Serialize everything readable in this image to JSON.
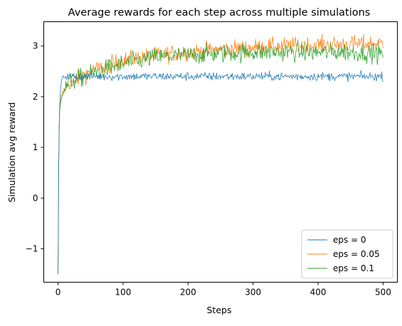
{
  "chart_data": {
    "type": "line",
    "title": "Average rewards for each step across multiple simulations",
    "xlabel": "Steps",
    "ylabel": "Simulation avg reward",
    "xlim": [
      -22,
      522
    ],
    "ylim": [
      -1.66,
      3.48
    ],
    "xticks": [
      0,
      100,
      200,
      300,
      400,
      500
    ],
    "yticks": [
      -1,
      0,
      1,
      2,
      3
    ],
    "xtick_labels": [
      "0",
      "100",
      "200",
      "300",
      "400",
      "500"
    ],
    "ytick_labels": [
      "−1",
      "0",
      "1",
      "2",
      "3"
    ],
    "grid": false,
    "legend_position": "lower-right",
    "series": [
      {
        "name": "eps = 0",
        "color": "#1f77b4",
        "x": [
          0,
          1,
          2,
          3,
          5,
          8,
          10,
          15,
          20,
          30,
          50,
          100,
          150,
          200,
          250,
          300,
          350,
          400,
          450,
          500
        ],
        "values": [
          -1.5,
          0.6,
          1.6,
          2.0,
          2.3,
          2.4,
          2.4,
          2.4,
          2.4,
          2.4,
          2.4,
          2.4,
          2.4,
          2.4,
          2.4,
          2.4,
          2.4,
          2.4,
          2.4,
          2.4
        ]
      },
      {
        "name": "eps = 0.05",
        "color": "#ff7f0e",
        "x": [
          0,
          1,
          2,
          3,
          5,
          8,
          10,
          15,
          20,
          30,
          50,
          100,
          150,
          200,
          250,
          300,
          350,
          400,
          450,
          500
        ],
        "values": [
          -1.5,
          0.6,
          1.6,
          1.8,
          2.0,
          2.1,
          2.15,
          2.25,
          2.3,
          2.35,
          2.5,
          2.72,
          2.82,
          2.88,
          2.93,
          2.97,
          3.0,
          3.02,
          3.04,
          3.05
        ]
      },
      {
        "name": "eps = 0.1",
        "color": "#2ca02c",
        "x": [
          0,
          1,
          2,
          3,
          5,
          8,
          10,
          15,
          20,
          30,
          50,
          100,
          150,
          200,
          250,
          300,
          350,
          400,
          450,
          500
        ],
        "values": [
          -1.5,
          0.6,
          1.6,
          1.8,
          2.0,
          2.1,
          2.15,
          2.25,
          2.3,
          2.35,
          2.45,
          2.65,
          2.78,
          2.82,
          2.85,
          2.88,
          2.88,
          2.88,
          2.88,
          2.85
        ]
      }
    ],
    "noise_amplitude": [
      0.06,
      0.12,
      0.13
    ]
  }
}
